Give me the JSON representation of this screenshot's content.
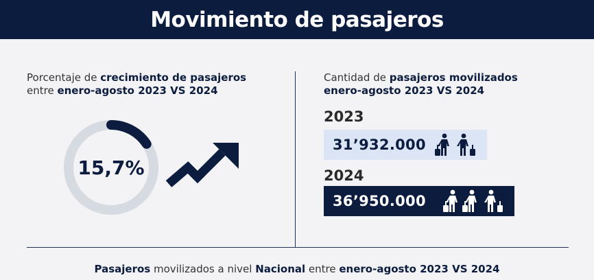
{
  "header": {
    "title": "Movimiento de pasajeros"
  },
  "growth": {
    "sub_prefix": "Porcentaje de ",
    "sub_bold1": "crecimiento de pasajeros",
    "sub_mid": "entre ",
    "sub_bold2": "enero-agosto 2023 VS 2024",
    "value_label": "15,7%",
    "ring_fraction": 0.157
  },
  "quantity": {
    "sub_prefix": "Cantidad de ",
    "sub_bold1": "pasajeros movilizados",
    "sub_bold2": "enero-agosto 2023 VS 2024",
    "items": [
      {
        "year": "2023",
        "value": "31’932.000",
        "icon": "traveler-icon x2"
      },
      {
        "year": "2024",
        "value": "36’950.000",
        "icon": "traveler-icon x3"
      }
    ]
  },
  "footer": {
    "bold1": "Pasajeros",
    "text1": " movilizados a nivel ",
    "bold2": "Nacional",
    "text2": " entre ",
    "bold3": "enero-agosto 2023 VS 2024"
  },
  "colors": {
    "navy": "#0b1c3f",
    "ring_track": "#d6dbe2",
    "light_box": "#dbe5f6",
    "background": "#f3f3f5"
  }
}
